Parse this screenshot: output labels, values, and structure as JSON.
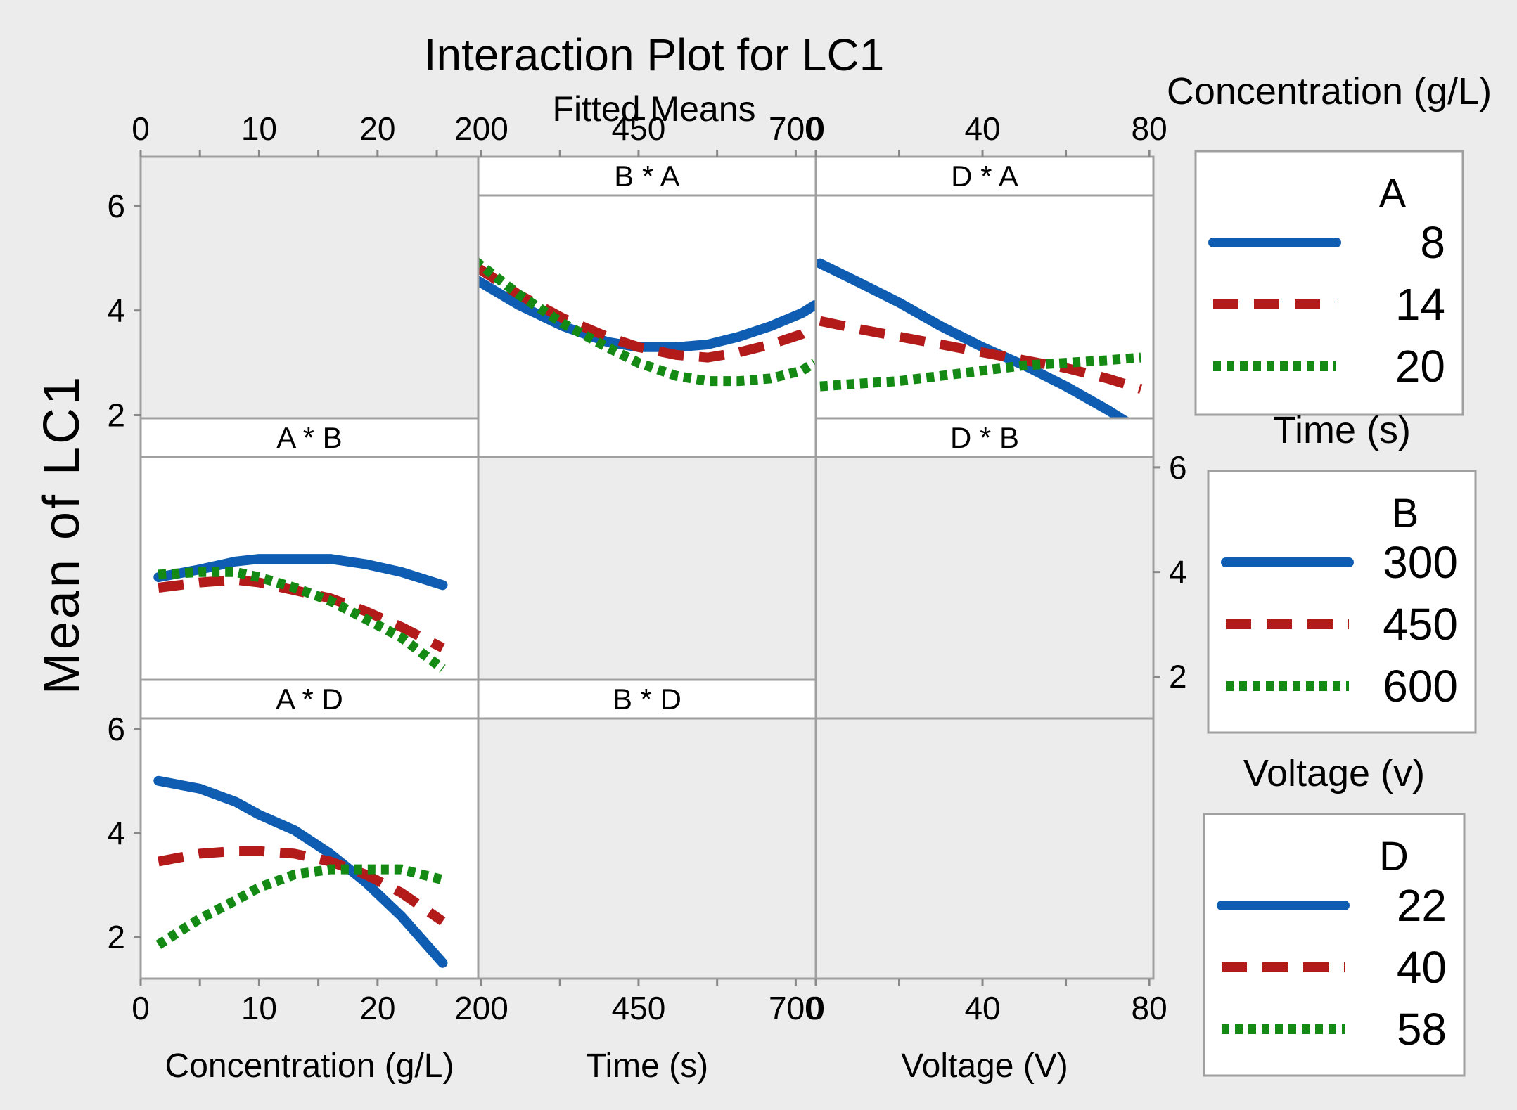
{
  "colors": {
    "outer_bg": "#ececec",
    "panel_bg": "#ffffff",
    "empty_bg": "#ececec",
    "frame": "#a0a0a0",
    "blue": "#0e5db2",
    "red": "#b31b1b",
    "green": "#148a14"
  },
  "chart_data": {
    "type": "line",
    "title": "Interaction Plot for LC1",
    "subtitle": "Fitted Means",
    "ylabel": "Mean of LC1",
    "ylim": [
      1.2,
      6.2
    ],
    "y_ticks": [
      2,
      4,
      6
    ],
    "y_tick_labels": [
      "2",
      "4",
      "6"
    ],
    "columns": [
      {
        "var": "A",
        "name": "Concentration (g/L)",
        "xlabel": "Concentration (g/L)",
        "xlim": [
          0,
          28.5
        ],
        "ticks": [
          0,
          10,
          20
        ],
        "tick_labels": [
          "0",
          "10",
          "20"
        ],
        "minor_ticks": [
          0,
          5,
          10,
          15,
          20,
          25
        ]
      },
      {
        "var": "B",
        "name": "Time (s)",
        "xlabel": "Time (s)",
        "xlim": [
          195,
          732
        ],
        "ticks": [
          200,
          450,
          700
        ],
        "tick_labels": [
          "200",
          "450",
          "700"
        ],
        "minor_ticks": [
          200,
          325,
          450,
          575,
          700
        ]
      },
      {
        "var": "D",
        "name": "Voltage (V)",
        "xlabel": "Voltage (V)",
        "xlim": [
          0,
          81
        ],
        "ticks": [
          0,
          40,
          80
        ],
        "tick_labels": [
          "0",
          "40",
          "80"
        ],
        "minor_ticks": [
          0,
          20,
          40,
          60,
          80
        ]
      }
    ],
    "panels": [
      {
        "id": "B * A",
        "label": "B * A",
        "row": 0,
        "col": 1,
        "x_var": "B",
        "trace_var": "A",
        "series": [
          {
            "name": "8",
            "style": "solid",
            "x": [
              190,
              260,
              330,
              400,
              450,
              510,
              560,
              610,
              660,
              710,
              730
            ],
            "y": [
              4.6,
              4.1,
              3.7,
              3.4,
              3.3,
              3.3,
              3.35,
              3.5,
              3.7,
              3.95,
              4.1
            ]
          },
          {
            "name": "14",
            "style": "dashed",
            "x": [
              190,
              260,
              330,
              400,
              450,
              510,
              560,
              610,
              660,
              710,
              730
            ],
            "y": [
              4.85,
              4.3,
              3.85,
              3.5,
              3.3,
              3.15,
              3.1,
              3.2,
              3.35,
              3.55,
              3.7
            ]
          },
          {
            "name": "20",
            "style": "dotted",
            "x": [
              190,
              260,
              330,
              400,
              450,
              510,
              560,
              610,
              660,
              710,
              730
            ],
            "y": [
              4.95,
              4.3,
              3.75,
              3.3,
              3.0,
              2.75,
              2.65,
              2.65,
              2.7,
              2.85,
              3.0
            ]
          }
        ]
      },
      {
        "id": "D * A",
        "label": "D * A",
        "row": 0,
        "col": 2,
        "x_var": "D",
        "trace_var": "A",
        "series": [
          {
            "name": "8",
            "style": "solid",
            "x": [
              1,
              10,
              20,
              30,
              40,
              50,
              60,
              70,
              78
            ],
            "y": [
              4.9,
              4.55,
              4.15,
              3.7,
              3.3,
              2.95,
              2.55,
              2.1,
              1.7
            ]
          },
          {
            "name": "14",
            "style": "dashed",
            "x": [
              1,
              10,
              20,
              30,
              40,
              50,
              60,
              70,
              78
            ],
            "y": [
              3.8,
              3.65,
              3.5,
              3.35,
              3.2,
              3.05,
              2.9,
              2.7,
              2.5
            ]
          },
          {
            "name": "20",
            "style": "dotted",
            "x": [
              1,
              10,
              20,
              30,
              40,
              50,
              60,
              70,
              78
            ],
            "y": [
              2.55,
              2.6,
              2.65,
              2.75,
              2.85,
              2.95,
              3.0,
              3.05,
              3.1
            ]
          }
        ]
      },
      {
        "id": "A * B",
        "label": "A * B",
        "row": 1,
        "col": 0,
        "x_var": "A",
        "trace_var": "B",
        "series": [
          {
            "name": "300",
            "style": "solid",
            "x": [
              1.5,
              5,
              8,
              10,
              13,
              16,
              19,
              22,
              25.5
            ],
            "y": [
              3.9,
              4.05,
              4.2,
              4.25,
              4.25,
              4.25,
              4.15,
              4.0,
              3.75
            ]
          },
          {
            "name": "450",
            "style": "dashed",
            "x": [
              1.5,
              5,
              8,
              10,
              13,
              16,
              19,
              22,
              25.5
            ],
            "y": [
              3.7,
              3.8,
              3.85,
              3.8,
              3.65,
              3.5,
              3.25,
              2.95,
              2.55
            ]
          },
          {
            "name": "600",
            "style": "dotted",
            "x": [
              1.5,
              5,
              8,
              10,
              13,
              16,
              19,
              22,
              25.5
            ],
            "y": [
              3.95,
              4.0,
              4.0,
              3.9,
              3.7,
              3.45,
              3.1,
              2.75,
              2.15
            ]
          }
        ]
      },
      {
        "id": "D * B",
        "label": "D * B",
        "row": 1,
        "col": 2,
        "x_var": "D",
        "trace_var": "B",
        "series": []
      },
      {
        "id": "A * D",
        "label": "A * D",
        "row": 2,
        "col": 0,
        "x_var": "A",
        "trace_var": "D",
        "series": [
          {
            "name": "22",
            "style": "solid",
            "x": [
              1.5,
              5,
              8,
              10,
              13,
              16,
              19,
              22,
              25.5
            ],
            "y": [
              5.0,
              4.85,
              4.6,
              4.35,
              4.05,
              3.6,
              3.05,
              2.4,
              1.5
            ]
          },
          {
            "name": "40",
            "style": "dashed",
            "x": [
              1.5,
              5,
              8,
              10,
              13,
              16,
              19,
              22,
              25.5
            ],
            "y": [
              3.45,
              3.6,
              3.65,
              3.65,
              3.6,
              3.45,
              3.2,
              2.85,
              2.3
            ]
          },
          {
            "name": "58",
            "style": "dotted",
            "x": [
              1.5,
              5,
              8,
              10,
              13,
              16,
              19,
              22,
              25.5
            ],
            "y": [
              1.85,
              2.35,
              2.7,
              2.95,
              3.2,
              3.3,
              3.3,
              3.3,
              3.1
            ]
          }
        ]
      },
      {
        "id": "B * D",
        "label": "B * D",
        "row": 2,
        "col": 1,
        "x_var": "B",
        "trace_var": "D",
        "series": []
      }
    ],
    "legends": [
      {
        "header": "Concentration (g/L)",
        "var": "A",
        "levels": [
          "8",
          "14",
          "20"
        ]
      },
      {
        "header": "Time (s)",
        "var": "B",
        "levels": [
          "300",
          "450",
          "600"
        ]
      },
      {
        "header": "Voltage (v)",
        "var": "D",
        "levels": [
          "22",
          "40",
          "58"
        ]
      }
    ]
  }
}
